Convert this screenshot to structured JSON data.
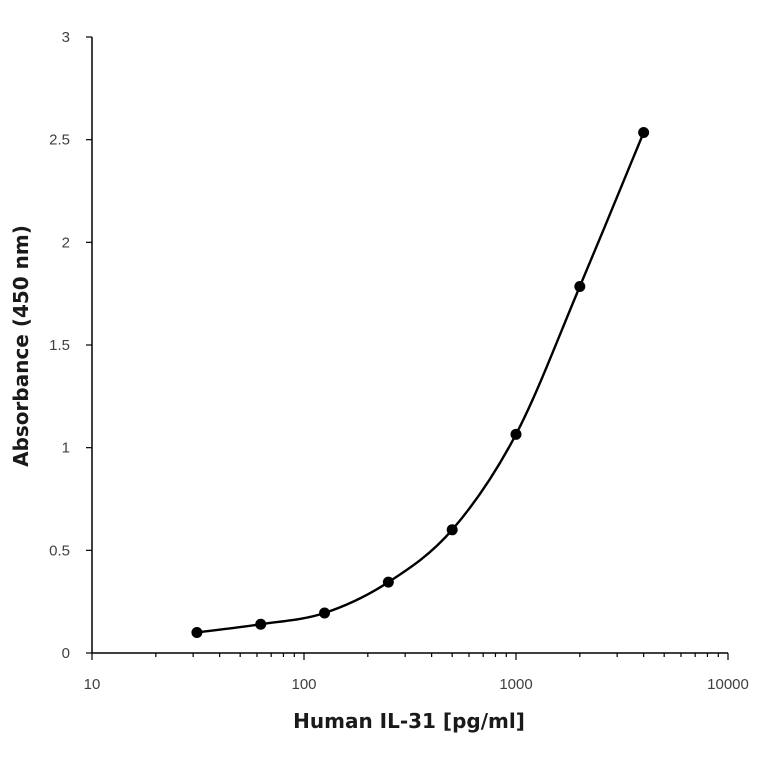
{
  "chart_data": {
    "type": "line",
    "title": "",
    "xlabel": "Human IL-31 [pg/ml]",
    "ylabel": "Absorbance (450 nm)",
    "x_scale": "log",
    "xlim": [
      10,
      10000
    ],
    "ylim": [
      0,
      3
    ],
    "x_ticks": [
      "10",
      "100",
      "1000",
      "10000"
    ],
    "y_ticks": [
      "0",
      "0.5",
      "1",
      "1.5",
      "2",
      "2.5",
      "3"
    ],
    "grid": false,
    "legend": "none",
    "series": [
      {
        "x": [
          31.25,
          62.5,
          125,
          250,
          500,
          1000,
          2000,
          4000
        ],
        "y": [
          0.1,
          0.14,
          0.195,
          0.345,
          0.6,
          1.065,
          1.785,
          2.535
        ]
      }
    ],
    "colors": {
      "line": "#000000",
      "marker": "#000000",
      "axis": "#000000",
      "text": "#404040"
    }
  }
}
